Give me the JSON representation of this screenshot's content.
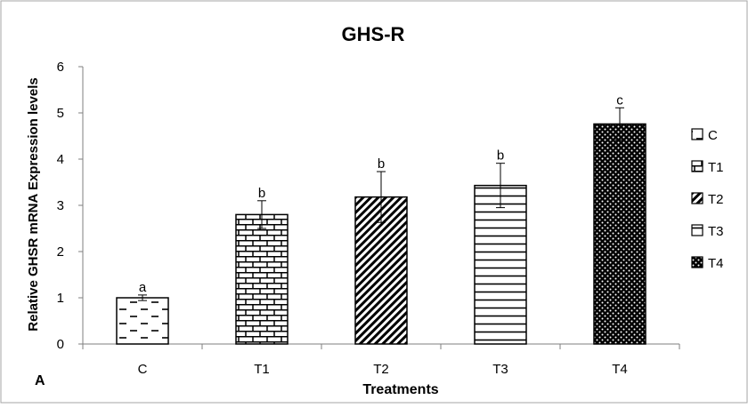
{
  "chart_data": {
    "type": "bar",
    "title": "GHS-R",
    "panel_label": "A",
    "xlabel": "Treatments",
    "ylabel": "Relative GHSR mRNA Expression levels",
    "ylim": [
      0,
      6
    ],
    "yticks": [
      "0",
      "1",
      "2",
      "3",
      "4",
      "5",
      "6"
    ],
    "grid": false,
    "legend_position": "right",
    "categories": [
      "C",
      "T1",
      "T2",
      "T3",
      "T4"
    ],
    "values": [
      1.0,
      2.8,
      3.18,
      3.43,
      4.76
    ],
    "error": [
      0.06,
      0.3,
      0.55,
      0.48,
      0.35
    ],
    "significance_letters": [
      "a",
      "b",
      "b",
      "b",
      "c"
    ],
    "patterns": [
      "dashes",
      "bricks",
      "diagonal",
      "horizontal",
      "dots"
    ],
    "legend": [
      {
        "label": "C",
        "pattern": "dashes"
      },
      {
        "label": "T1",
        "pattern": "bricks"
      },
      {
        "label": "T2",
        "pattern": "diagonal"
      },
      {
        "label": "T3",
        "pattern": "horizontal"
      },
      {
        "label": "T4",
        "pattern": "dots"
      }
    ],
    "colors": {
      "bar_ink": "#000000",
      "bar_fill": "#ffffff",
      "axis": "#7f7f7f"
    }
  }
}
